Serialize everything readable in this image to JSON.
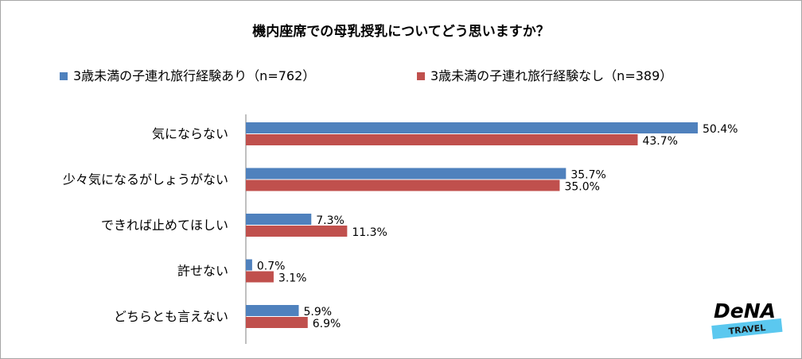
{
  "chart_data": {
    "type": "bar",
    "orientation": "horizontal",
    "title": "機内座席での母乳授乳についてどう思いますか？",
    "categories": [
      "気にならない",
      "少々気になるがしょうがない",
      "できれば止めてほしい",
      "許せない",
      "どちらとも言えない"
    ],
    "series": [
      {
        "name": "3歳未満の子連れ旅行経験あり（n=762）",
        "color": "#4f81bd",
        "values": [
          50.4,
          35.7,
          7.3,
          0.7,
          5.9
        ],
        "labels": [
          "50.4%",
          "35.7%",
          "7.3%",
          "0.7%",
          "5.9%"
        ]
      },
      {
        "name": "3歳未満の子連れ旅行経験なし（n=389）",
        "color": "#c0504d",
        "values": [
          43.7,
          35.0,
          11.3,
          3.1,
          6.9
        ],
        "labels": [
          "43.7%",
          "35.0%",
          "11.3%",
          "3.1%",
          "6.9%"
        ]
      }
    ],
    "legend_position": "top",
    "grid": false
  },
  "logo": {
    "brand": "DeNA",
    "sub": "TRAVEL",
    "accent": "#5bc8ef"
  }
}
